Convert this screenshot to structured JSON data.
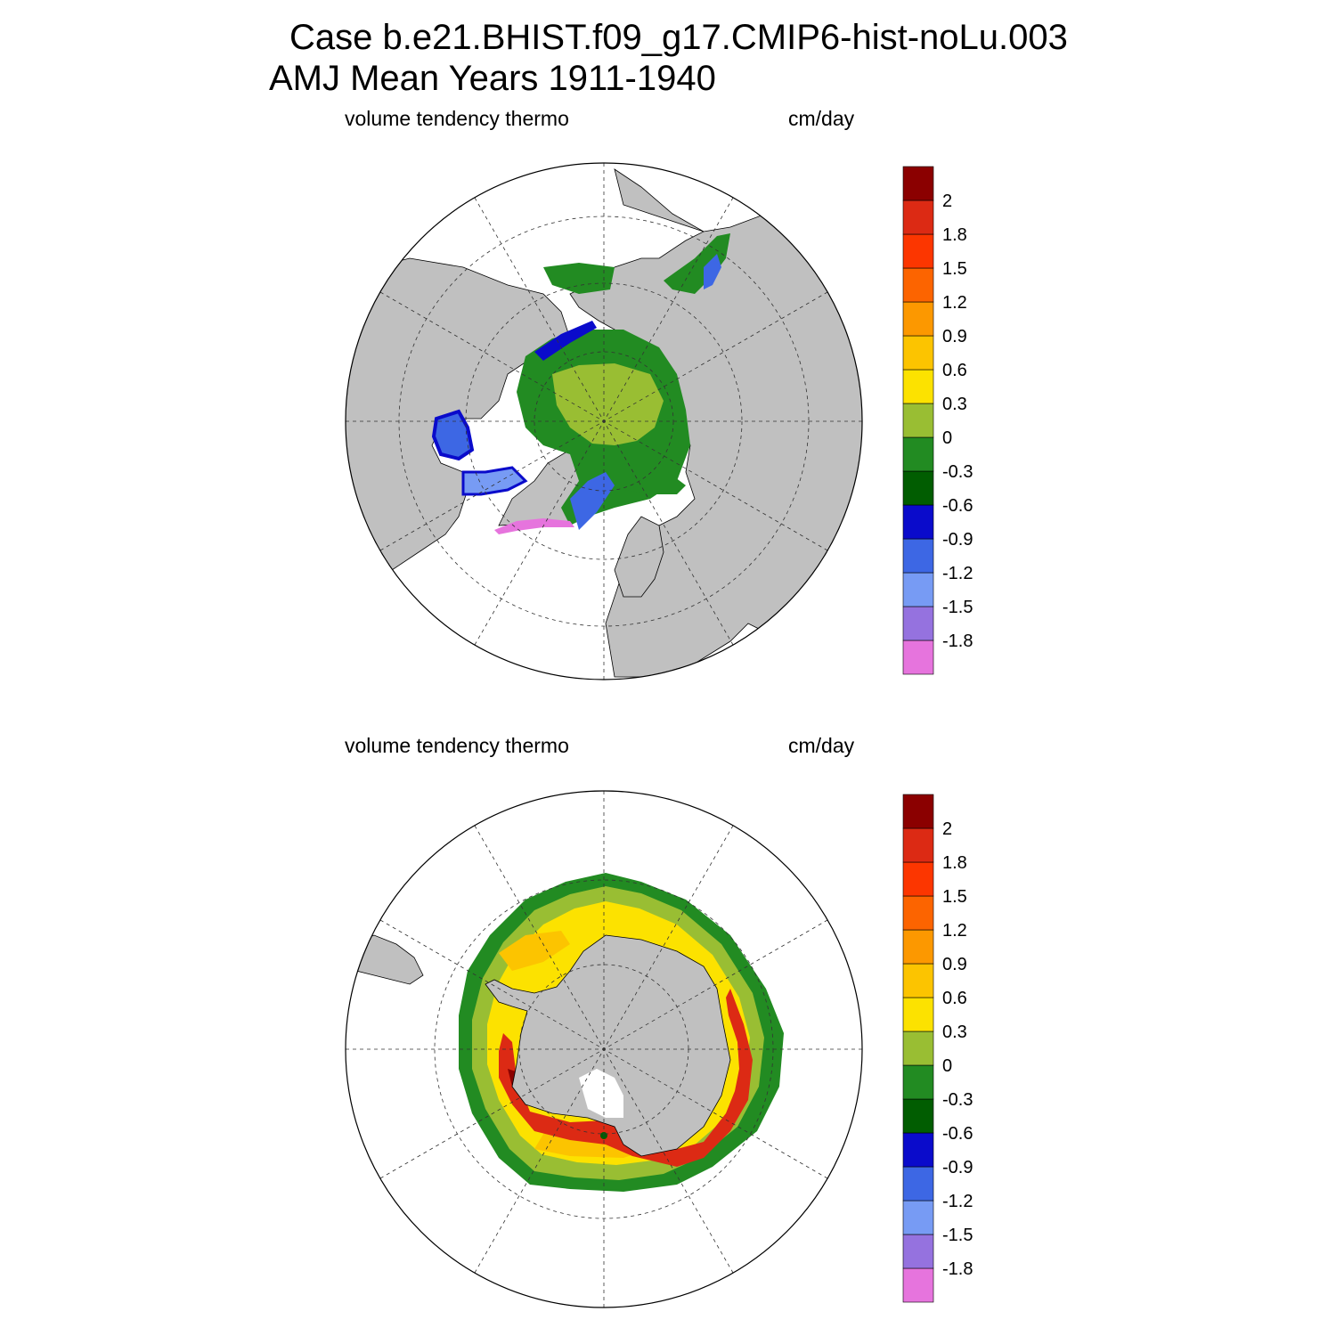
{
  "header": {
    "title_line1": "Case b.e21.BHIST.f09_g17.CMIP6-hist-noLu.003",
    "title_line2": "AMJ Mean   Years 1911-1940"
  },
  "panels": [
    {
      "id": "north",
      "hemisphere": "Northern Hemisphere",
      "variable_label": "volume tendency thermo",
      "units_label": "cm/day"
    },
    {
      "id": "south",
      "hemisphere": "Southern Hemisphere",
      "variable_label": "volume tendency thermo",
      "units_label": "cm/day"
    }
  ],
  "colorbar": {
    "colors": [
      "#E674DD",
      "#9572DF",
      "#779BF4",
      "#3D67E4",
      "#0A0BCB",
      "#015D01",
      "#228B22",
      "#99BE33",
      "#FCE200",
      "#FCC400",
      "#FC9800",
      "#FC6400",
      "#FC3600",
      "#DC2A14",
      "#8B0000"
    ],
    "labels": [
      "-1.8",
      "-1.5",
      "-1.2",
      "-0.9",
      "-0.6",
      "-0.3",
      "0",
      "0.3",
      "0.6",
      "0.9",
      "1.2",
      "1.5",
      "1.8",
      "2"
    ]
  },
  "map_colors": {
    "land": "#C0C0C0",
    "ocean_no_ice": "#FFFFFF"
  }
}
